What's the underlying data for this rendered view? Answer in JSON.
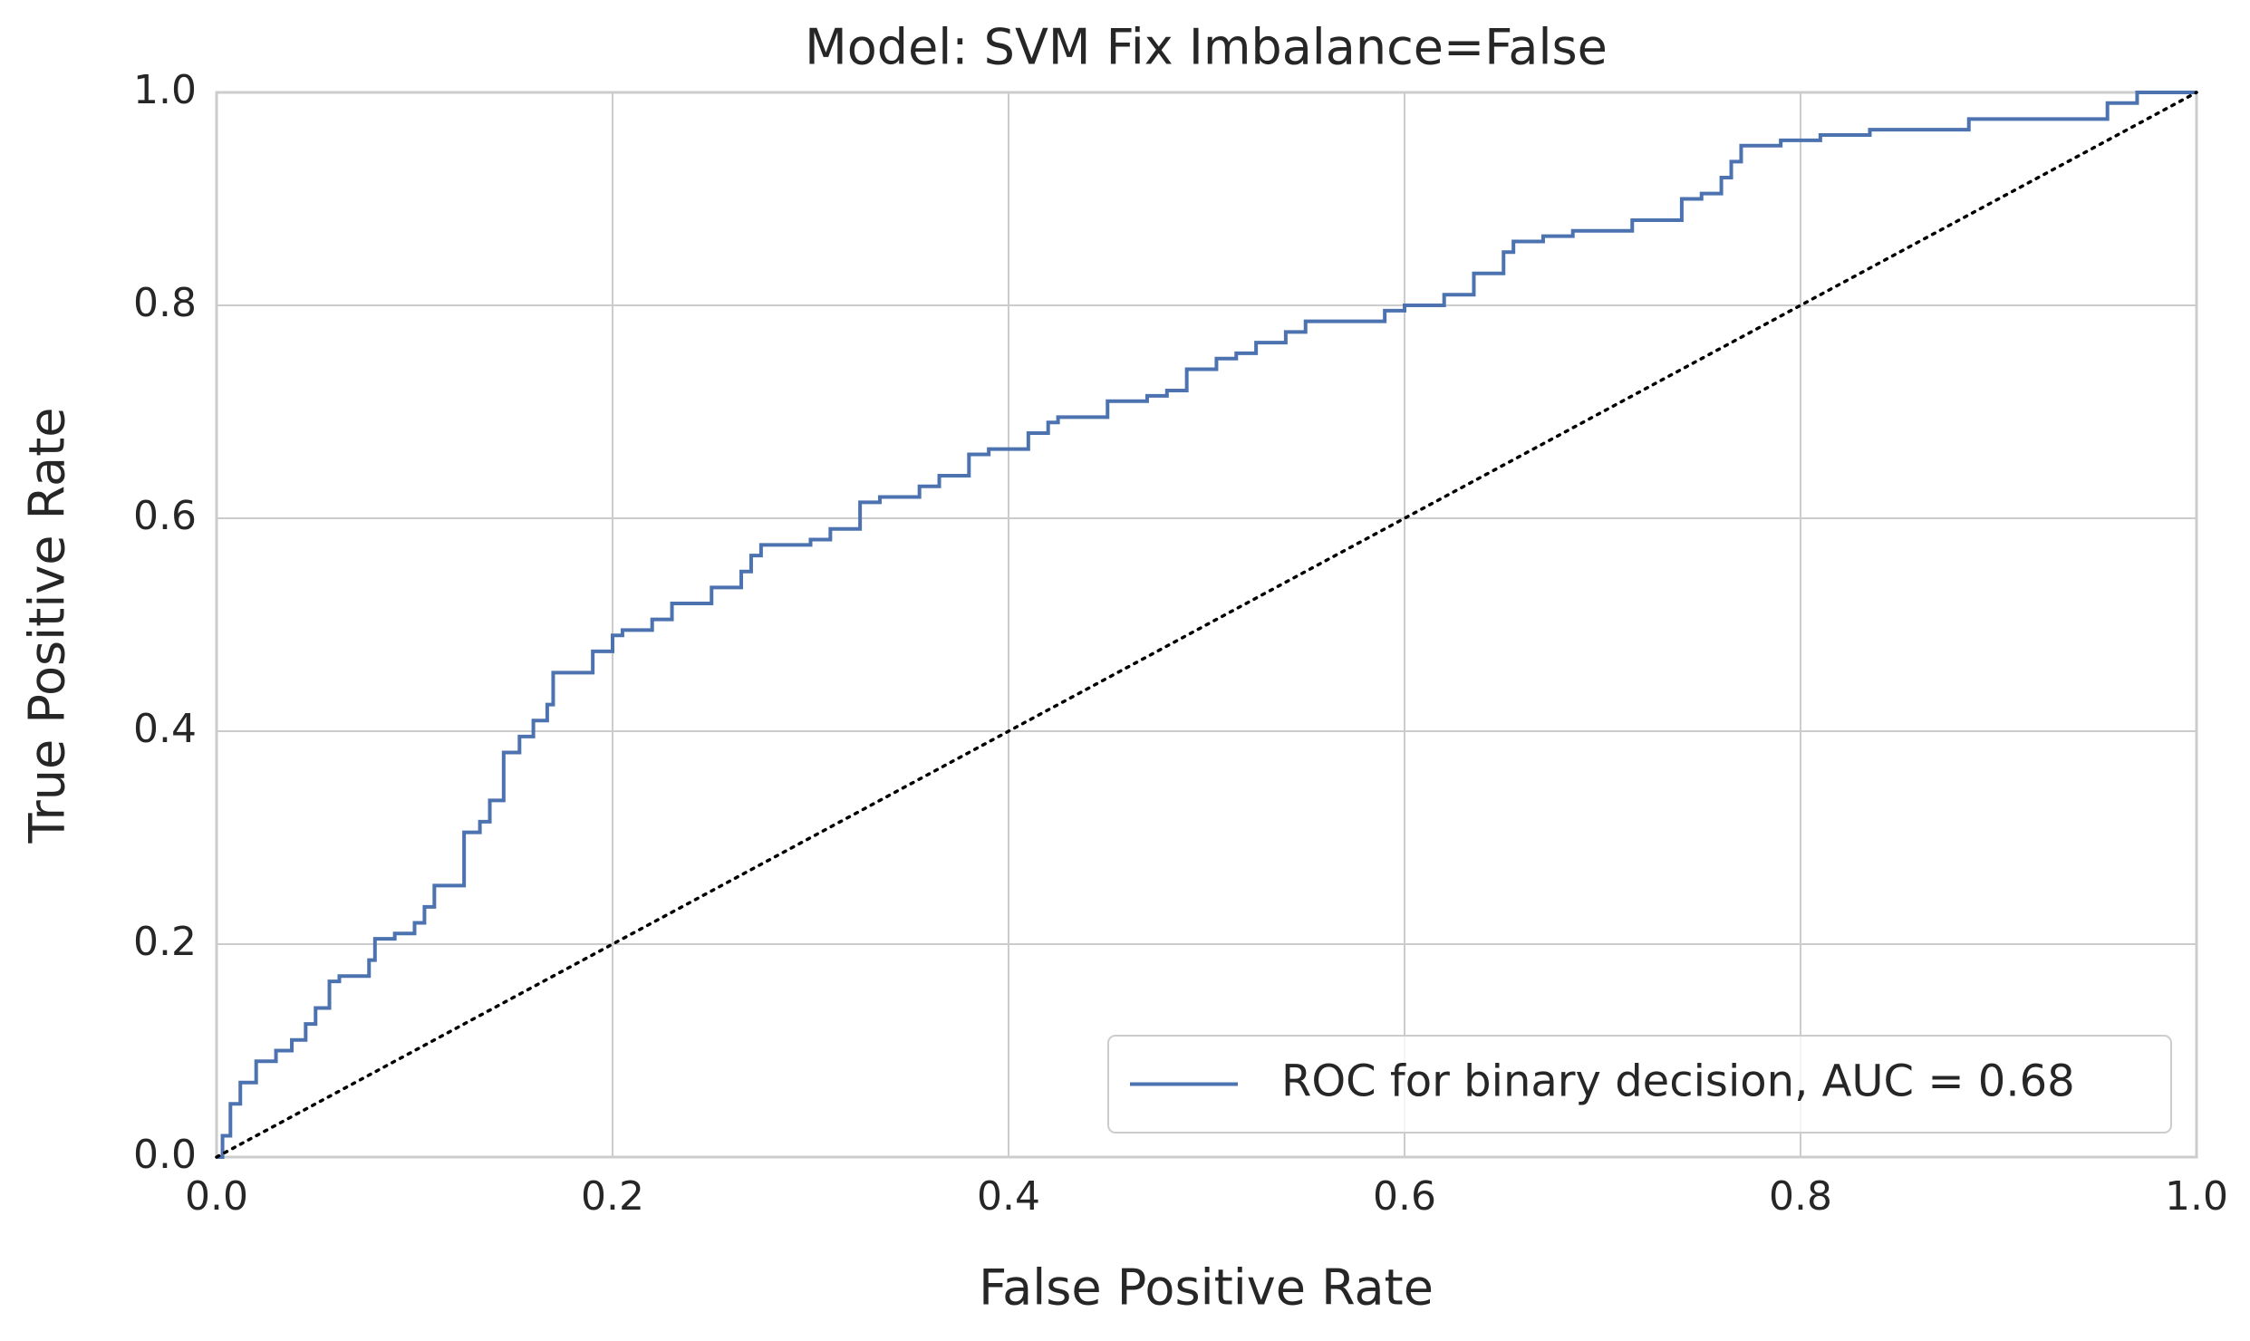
{
  "chart_data": {
    "type": "line",
    "title": "Model: SVM     Fix Imbalance=False",
    "xlabel": "False Positive Rate",
    "ylabel": "True Positive Rate",
    "xlim": [
      0,
      1
    ],
    "ylim": [
      0,
      1
    ],
    "xticks": [
      {
        "value": 0,
        "label": "0.0"
      },
      0.2,
      0.4,
      0.6,
      0.8,
      {
        "value": 1,
        "label": "1.0"
      }
    ],
    "yticks": [
      {
        "value": 0,
        "label": "0.0"
      },
      0.2,
      0.4,
      0.6,
      0.8,
      {
        "value": 1,
        "label": "1.0"
      }
    ],
    "grid": true,
    "legend": "lower right",
    "series": [
      {
        "name": "ROC for binary decision, AUC = 0.68",
        "color": "#4c72b0",
        "style": "solid",
        "x": [
          0,
          0.003,
          0.003,
          0.007,
          0.007,
          0.012,
          0.012,
          0.02,
          0.02,
          0.03,
          0.03,
          0.038,
          0.038,
          0.045,
          0.045,
          0.05,
          0.05,
          0.057,
          0.057,
          0.062,
          0.062,
          0.077,
          0.077,
          0.08,
          0.08,
          0.09,
          0.09,
          0.1,
          0.1,
          0.105,
          0.105,
          0.11,
          0.11,
          0.125,
          0.125,
          0.133,
          0.133,
          0.138,
          0.138,
          0.145,
          0.145,
          0.153,
          0.153,
          0.16,
          0.16,
          0.167,
          0.167,
          0.17,
          0.17,
          0.19,
          0.19,
          0.2,
          0.2,
          0.205,
          0.205,
          0.22,
          0.22,
          0.23,
          0.23,
          0.25,
          0.25,
          0.265,
          0.265,
          0.27,
          0.27,
          0.275,
          0.275,
          0.3,
          0.3,
          0.31,
          0.31,
          0.325,
          0.325,
          0.335,
          0.335,
          0.355,
          0.355,
          0.365,
          0.365,
          0.38,
          0.38,
          0.39,
          0.39,
          0.41,
          0.41,
          0.42,
          0.42,
          0.425,
          0.425,
          0.45,
          0.45,
          0.47,
          0.47,
          0.48,
          0.48,
          0.49,
          0.49,
          0.505,
          0.505,
          0.515,
          0.515,
          0.525,
          0.525,
          0.54,
          0.54,
          0.55,
          0.55,
          0.59,
          0.59,
          0.6,
          0.6,
          0.62,
          0.62,
          0.635,
          0.635,
          0.65,
          0.65,
          0.655,
          0.655,
          0.67,
          0.67,
          0.685,
          0.685,
          0.715,
          0.715,
          0.74,
          0.74,
          0.75,
          0.75,
          0.76,
          0.76,
          0.765,
          0.765,
          0.77,
          0.77,
          0.79,
          0.79,
          0.81,
          0.81,
          0.835,
          0.835,
          0.885,
          0.885,
          0.955,
          0.955,
          0.97,
          0.97,
          1
        ],
        "y": [
          0,
          0,
          0.02,
          0.02,
          0.05,
          0.05,
          0.07,
          0.07,
          0.09,
          0.09,
          0.1,
          0.1,
          0.11,
          0.11,
          0.125,
          0.125,
          0.14,
          0.14,
          0.165,
          0.165,
          0.17,
          0.17,
          0.185,
          0.185,
          0.205,
          0.205,
          0.21,
          0.21,
          0.22,
          0.22,
          0.235,
          0.235,
          0.255,
          0.255,
          0.305,
          0.305,
          0.315,
          0.315,
          0.335,
          0.335,
          0.38,
          0.38,
          0.395,
          0.395,
          0.41,
          0.41,
          0.425,
          0.425,
          0.455,
          0.455,
          0.475,
          0.475,
          0.49,
          0.49,
          0.495,
          0.495,
          0.505,
          0.505,
          0.52,
          0.52,
          0.535,
          0.535,
          0.55,
          0.55,
          0.565,
          0.565,
          0.575,
          0.575,
          0.58,
          0.58,
          0.59,
          0.59,
          0.615,
          0.615,
          0.62,
          0.62,
          0.63,
          0.63,
          0.64,
          0.64,
          0.66,
          0.66,
          0.665,
          0.665,
          0.68,
          0.68,
          0.69,
          0.69,
          0.695,
          0.695,
          0.71,
          0.71,
          0.715,
          0.715,
          0.72,
          0.72,
          0.74,
          0.74,
          0.75,
          0.75,
          0.755,
          0.755,
          0.765,
          0.765,
          0.775,
          0.775,
          0.785,
          0.785,
          0.795,
          0.795,
          0.8,
          0.8,
          0.81,
          0.81,
          0.83,
          0.83,
          0.85,
          0.85,
          0.86,
          0.86,
          0.865,
          0.865,
          0.87,
          0.87,
          0.88,
          0.88,
          0.9,
          0.9,
          0.905,
          0.905,
          0.92,
          0.92,
          0.935,
          0.935,
          0.95,
          0.95,
          0.955,
          0.955,
          0.96,
          0.96,
          0.965,
          0.965,
          0.975,
          0.975,
          0.99,
          0.99,
          1,
          1
        ]
      },
      {
        "color": "#000000",
        "style": "dotted",
        "x": [
          0,
          1
        ],
        "y": [
          0,
          1
        ]
      }
    ]
  }
}
